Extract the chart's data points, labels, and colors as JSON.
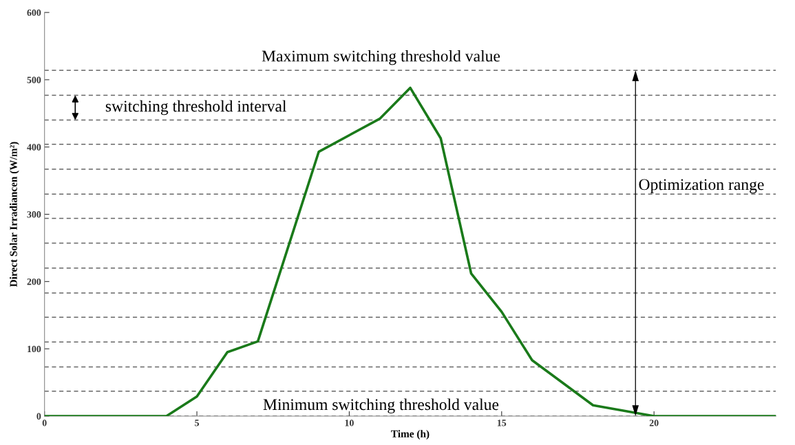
{
  "chart_data": {
    "type": "line",
    "xlabel": "Time (h)",
    "ylabel": "Direct Solar Irradiancen (W/m²)",
    "series": [
      {
        "color": "#1a7a1a",
        "x": [
          0,
          4,
          5,
          6,
          7,
          9,
          11,
          12,
          13,
          14,
          15,
          16,
          18,
          20,
          24
        ],
        "values": [
          0,
          0,
          29,
          95,
          111,
          393,
          442,
          488,
          413,
          212,
          155,
          83,
          16,
          0,
          0
        ]
      }
    ],
    "xlim": [
      0,
      24
    ],
    "xticks": [
      0,
      5,
      10,
      15,
      20
    ],
    "ylim": [
      0,
      600
    ],
    "yticks": [
      0,
      100,
      200,
      300,
      400,
      500,
      600
    ],
    "grid": false,
    "legend": false,
    "marker": "none",
    "line_style": "solid",
    "ref_lines": [
      {
        "axis": "y",
        "value": 0,
        "color": "#666666",
        "line_style": "dashed"
      },
      {
        "axis": "y",
        "value": 37,
        "color": "#666666",
        "line_style": "dashed"
      },
      {
        "axis": "y",
        "value": 73,
        "color": "#666666",
        "line_style": "dashed"
      },
      {
        "axis": "y",
        "value": 110,
        "color": "#666666",
        "line_style": "dashed"
      },
      {
        "axis": "y",
        "value": 147,
        "color": "#666666",
        "line_style": "dashed"
      },
      {
        "axis": "y",
        "value": 183,
        "color": "#666666",
        "line_style": "dashed"
      },
      {
        "axis": "y",
        "value": 220,
        "color": "#666666",
        "line_style": "dashed"
      },
      {
        "axis": "y",
        "value": 257,
        "color": "#666666",
        "line_style": "dashed"
      },
      {
        "axis": "y",
        "value": 294,
        "color": "#666666",
        "line_style": "dashed"
      },
      {
        "axis": "y",
        "value": 330,
        "color": "#666666",
        "line_style": "dashed"
      },
      {
        "axis": "y",
        "value": 367,
        "color": "#666666",
        "line_style": "dashed"
      },
      {
        "axis": "y",
        "value": 404,
        "color": "#666666",
        "line_style": "dashed"
      },
      {
        "axis": "y",
        "value": 440,
        "color": "#666666",
        "line_style": "dashed"
      },
      {
        "axis": "y",
        "value": 477,
        "color": "#666666",
        "line_style": "dashed"
      },
      {
        "axis": "y",
        "value": 514,
        "color": "#666666",
        "line_style": "dashed"
      }
    ],
    "annotations": [
      "Maximum switching threshold value",
      "switching threshold interval",
      "Optimization range",
      "Minimum switching threshold value"
    ]
  }
}
